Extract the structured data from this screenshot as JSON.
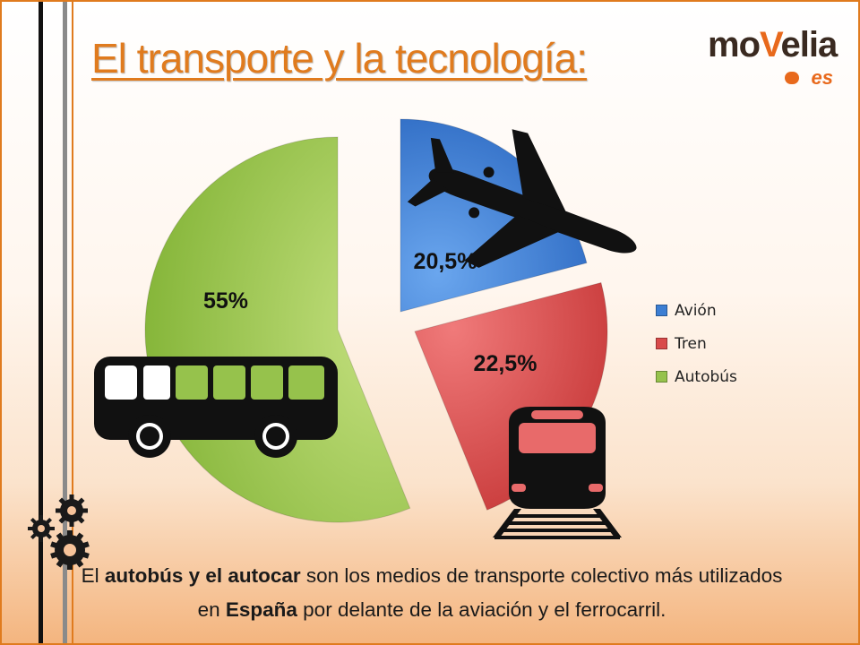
{
  "title": "El transporte y la tecnología:",
  "logo": {
    "main_a": "mo",
    "main_b": "V",
    "main_c": "elia",
    "suffix": "es"
  },
  "caption": {
    "l1_pre": "El ",
    "l1_bold": "autobús y el autocar",
    "l1_post": " son los medios de transporte colectivo más utilizados",
    "l2_pre": "en ",
    "l2_bold": "España",
    "l2_post": " por delante de la aviación y el ferrocarril."
  },
  "chart_data": {
    "type": "pie",
    "exploded": true,
    "slices": [
      {
        "label": "Avión",
        "value": 20.5,
        "display": "20,5%",
        "color": "#3c7ed3",
        "icon": "airplane-icon"
      },
      {
        "label": "Tren",
        "value": 22.5,
        "display": "22,5%",
        "color": "#d94a4a",
        "icon": "train-icon"
      },
      {
        "label": "Autobús",
        "value": 55,
        "display": "55%",
        "color": "#96c24c",
        "icon": "bus-icon"
      }
    ],
    "legend_position": "right",
    "title": ""
  },
  "colors": {
    "accent": "#e07b1e",
    "airplane": "#3c7ed3",
    "train": "#d94a4a",
    "bus": "#96c24c"
  }
}
